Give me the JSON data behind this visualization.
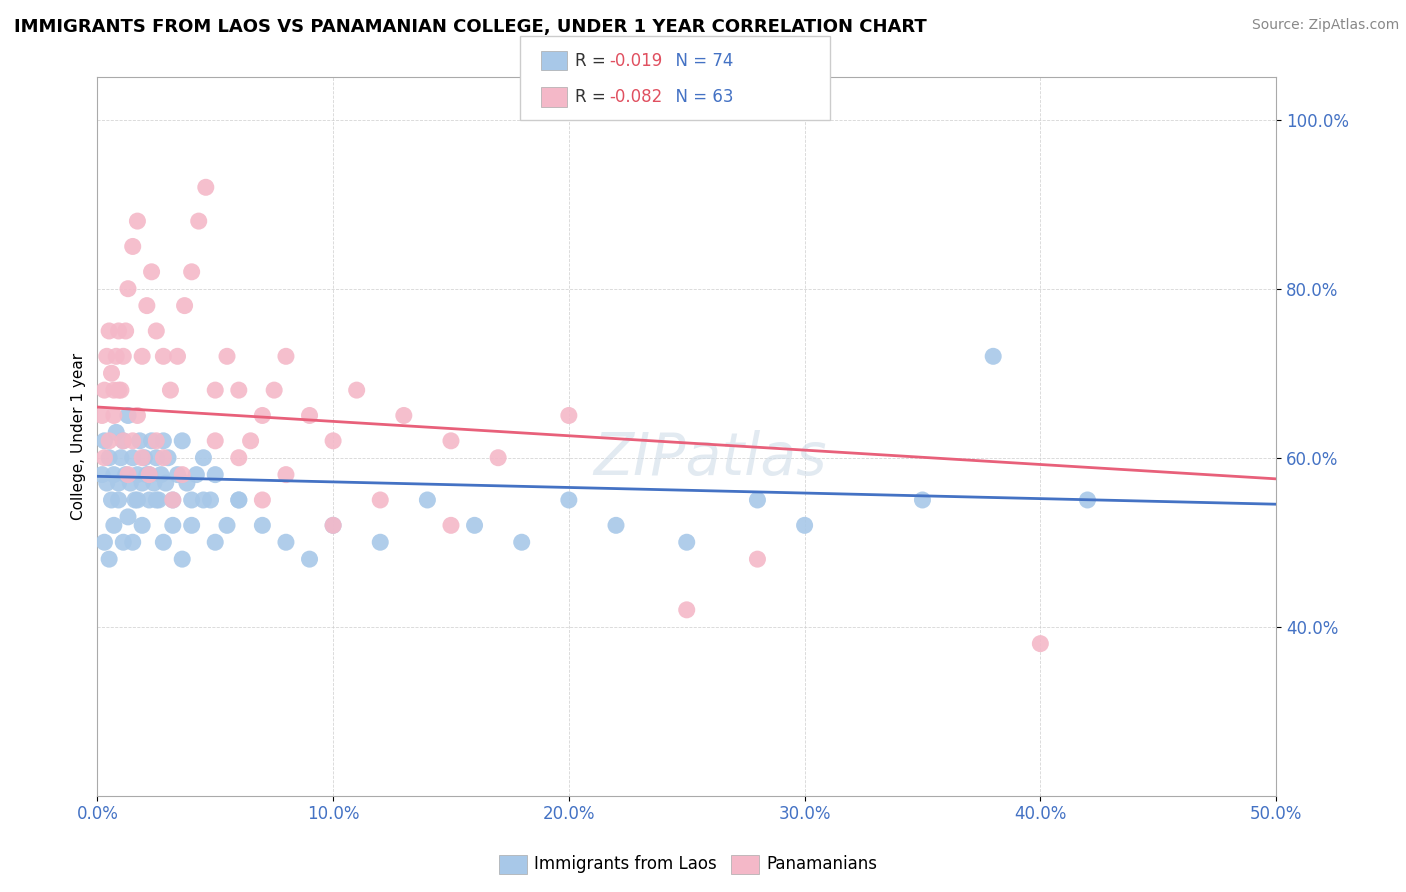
{
  "title": "IMMIGRANTS FROM LAOS VS PANAMANIAN COLLEGE, UNDER 1 YEAR CORRELATION CHART",
  "source": "Source: ZipAtlas.com",
  "ylabel": "College, Under 1 year",
  "xmin": 0.0,
  "xmax": 0.5,
  "ymin": 0.2,
  "ymax": 1.05,
  "series1_label": "Immigrants from Laos",
  "series1_R": -0.019,
  "series1_N": 74,
  "series1_color": "#a8c8e8",
  "series1_line_color": "#4472c4",
  "series2_label": "Panamanians",
  "series2_R": -0.082,
  "series2_N": 63,
  "series2_color": "#f4b8c8",
  "series2_line_color": "#e8607a",
  "watermark": "ZIPatlas",
  "ytick_labels": [
    "40.0%",
    "60.0%",
    "80.0%",
    "100.0%"
  ],
  "ytick_values": [
    0.4,
    0.6,
    0.8,
    1.0
  ],
  "xtick_labels": [
    "0.0%",
    "10.0%",
    "20.0%",
    "30.0%",
    "40.0%",
    "50.0%"
  ],
  "xtick_values": [
    0.0,
    0.1,
    0.2,
    0.3,
    0.4,
    0.5
  ],
  "trendline1_x0": 0.0,
  "trendline1_y0": 0.578,
  "trendline1_x1": 0.5,
  "trendline1_y1": 0.545,
  "trendline2_x0": 0.0,
  "trendline2_y0": 0.66,
  "trendline2_x1": 0.5,
  "trendline2_y1": 0.575,
  "series1_x": [
    0.002,
    0.003,
    0.004,
    0.005,
    0.006,
    0.007,
    0.008,
    0.009,
    0.01,
    0.011,
    0.012,
    0.013,
    0.014,
    0.015,
    0.016,
    0.017,
    0.018,
    0.019,
    0.02,
    0.021,
    0.022,
    0.023,
    0.024,
    0.025,
    0.026,
    0.027,
    0.028,
    0.029,
    0.03,
    0.032,
    0.034,
    0.036,
    0.038,
    0.04,
    0.042,
    0.045,
    0.048,
    0.05,
    0.055,
    0.06,
    0.003,
    0.005,
    0.007,
    0.009,
    0.011,
    0.013,
    0.015,
    0.017,
    0.019,
    0.022,
    0.025,
    0.028,
    0.032,
    0.036,
    0.04,
    0.045,
    0.05,
    0.06,
    0.07,
    0.08,
    0.09,
    0.1,
    0.12,
    0.14,
    0.16,
    0.18,
    0.2,
    0.22,
    0.25,
    0.28,
    0.3,
    0.35,
    0.38,
    0.42
  ],
  "series1_y": [
    0.58,
    0.62,
    0.57,
    0.6,
    0.55,
    0.58,
    0.63,
    0.57,
    0.6,
    0.62,
    0.58,
    0.65,
    0.57,
    0.6,
    0.55,
    0.58,
    0.62,
    0.57,
    0.6,
    0.58,
    0.55,
    0.62,
    0.57,
    0.6,
    0.55,
    0.58,
    0.62,
    0.57,
    0.6,
    0.55,
    0.58,
    0.62,
    0.57,
    0.55,
    0.58,
    0.6,
    0.55,
    0.58,
    0.52,
    0.55,
    0.5,
    0.48,
    0.52,
    0.55,
    0.5,
    0.53,
    0.5,
    0.55,
    0.52,
    0.58,
    0.55,
    0.5,
    0.52,
    0.48,
    0.52,
    0.55,
    0.5,
    0.55,
    0.52,
    0.5,
    0.48,
    0.52,
    0.5,
    0.55,
    0.52,
    0.5,
    0.55,
    0.52,
    0.5,
    0.55,
    0.52,
    0.55,
    0.72,
    0.55
  ],
  "series2_x": [
    0.002,
    0.003,
    0.004,
    0.005,
    0.006,
    0.007,
    0.008,
    0.009,
    0.01,
    0.011,
    0.012,
    0.013,
    0.015,
    0.017,
    0.019,
    0.021,
    0.023,
    0.025,
    0.028,
    0.031,
    0.034,
    0.037,
    0.04,
    0.043,
    0.046,
    0.05,
    0.055,
    0.06,
    0.065,
    0.07,
    0.075,
    0.08,
    0.09,
    0.1,
    0.11,
    0.13,
    0.15,
    0.17,
    0.2,
    0.003,
    0.005,
    0.007,
    0.009,
    0.011,
    0.013,
    0.015,
    0.017,
    0.019,
    0.022,
    0.025,
    0.028,
    0.032,
    0.036,
    0.05,
    0.06,
    0.07,
    0.08,
    0.1,
    0.12,
    0.15,
    0.25,
    0.28,
    0.4
  ],
  "series2_y": [
    0.65,
    0.68,
    0.72,
    0.75,
    0.7,
    0.68,
    0.72,
    0.75,
    0.68,
    0.72,
    0.75,
    0.8,
    0.85,
    0.88,
    0.72,
    0.78,
    0.82,
    0.75,
    0.72,
    0.68,
    0.72,
    0.78,
    0.82,
    0.88,
    0.92,
    0.68,
    0.72,
    0.68,
    0.62,
    0.65,
    0.68,
    0.72,
    0.65,
    0.62,
    0.68,
    0.65,
    0.62,
    0.6,
    0.65,
    0.6,
    0.62,
    0.65,
    0.68,
    0.62,
    0.58,
    0.62,
    0.65,
    0.6,
    0.58,
    0.62,
    0.6,
    0.55,
    0.58,
    0.62,
    0.6,
    0.55,
    0.58,
    0.52,
    0.55,
    0.52,
    0.42,
    0.48,
    0.38
  ]
}
